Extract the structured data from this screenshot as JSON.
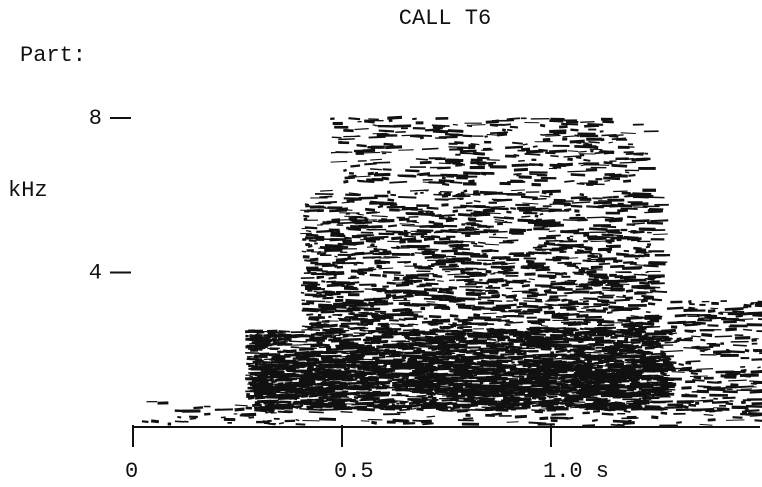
{
  "chart_data": {
    "type": "spectrogram",
    "title": "CALL T6",
    "subtitle": "Part:",
    "y_label": "kHz",
    "xlim": [
      0,
      1.5
    ],
    "xticks": [
      0,
      0.5,
      {
        "value": 1,
        "label": "1.0 s"
      }
    ],
    "ylim": [
      0,
      8
    ],
    "yticks": [
      4,
      8
    ]
  }
}
